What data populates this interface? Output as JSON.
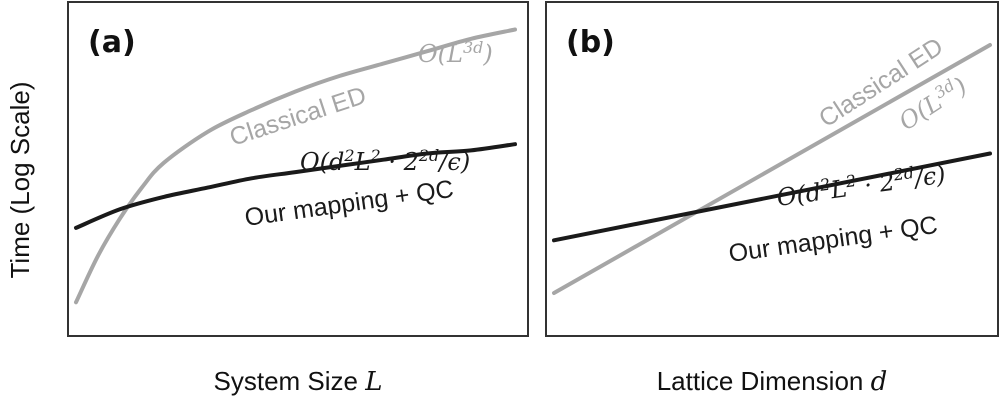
{
  "figure": {
    "ylabel": "Time (Log Scale)"
  },
  "colors": {
    "classical": "#a6a6a6",
    "ours": "#1a1a1a"
  },
  "chart_data": [
    {
      "type": "line",
      "panel": "(a)",
      "xlabel_text": "System Size ",
      "xlabel_var": "L",
      "ylabel": "Time (Log Scale)",
      "y_scale": "log",
      "ticks_shown": false,
      "grid": false,
      "series": [
        {
          "name": "Classical ED",
          "complexity": "O(L^{3d})",
          "x": [
            0.0,
            0.05,
            0.1,
            0.15,
            0.2,
            0.3,
            0.4,
            0.5,
            0.6,
            0.7,
            0.8,
            0.9,
            1.0
          ],
          "y": [
            0.07,
            0.22,
            0.34,
            0.44,
            0.52,
            0.62,
            0.69,
            0.75,
            0.8,
            0.84,
            0.88,
            0.92,
            0.95
          ]
        },
        {
          "name": "Our mapping + QC",
          "complexity": "O(d^2 L^2 · 2^{2d}/ε)",
          "x": [
            0.0,
            0.1,
            0.2,
            0.3,
            0.4,
            0.5,
            0.6,
            0.7,
            0.8,
            0.9,
            1.0
          ],
          "y": [
            0.31,
            0.37,
            0.41,
            0.44,
            0.47,
            0.49,
            0.51,
            0.53,
            0.55,
            0.56,
            0.58
          ]
        }
      ]
    },
    {
      "type": "line",
      "panel": "(b)",
      "xlabel_text": "Lattice Dimension ",
      "xlabel_var": "d",
      "ylabel": "Time (Log Scale)",
      "y_scale": "log",
      "ticks_shown": false,
      "grid": false,
      "series": [
        {
          "name": "Classical ED",
          "complexity": "O(L^{3d})",
          "x": [
            0.0,
            1.0
          ],
          "y": [
            0.1,
            0.9
          ]
        },
        {
          "name": "Our mapping + QC",
          "complexity": "O(d^2 L^2 · 2^{2d}/ε)",
          "x": [
            0.0,
            1.0
          ],
          "y": [
            0.27,
            0.55
          ]
        }
      ]
    }
  ]
}
